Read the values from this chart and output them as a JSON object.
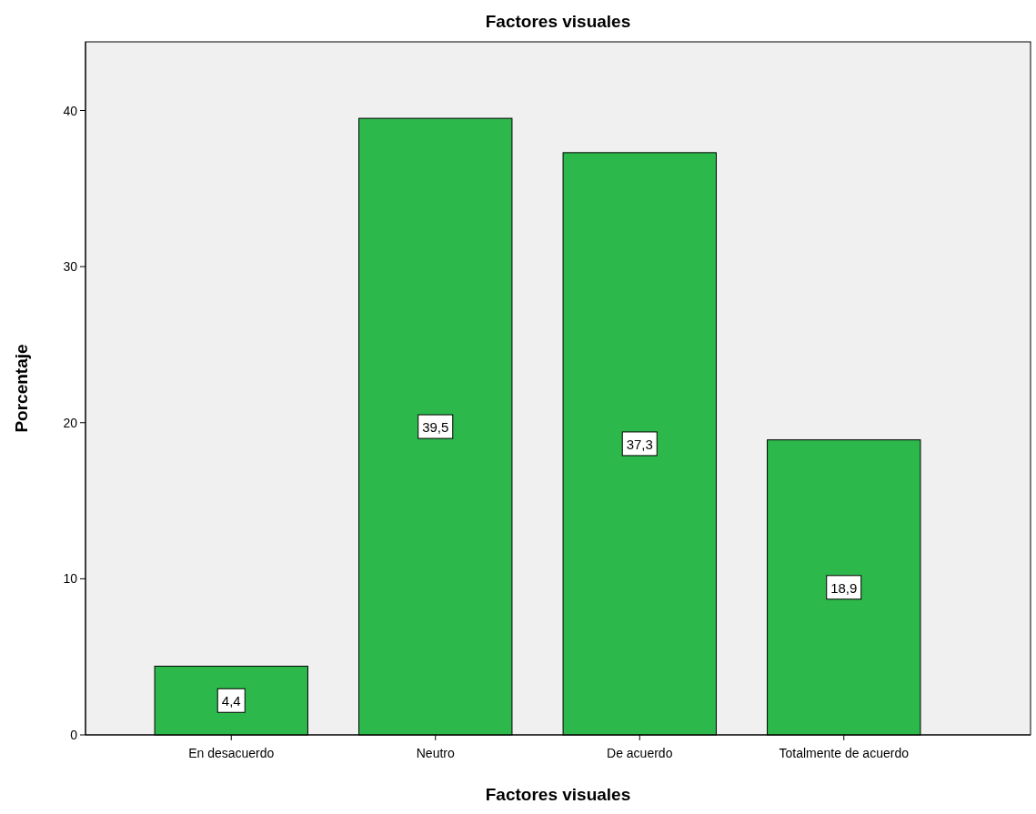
{
  "chart_data": {
    "type": "bar",
    "title": "Factores visuales",
    "xlabel": "Factores visuales",
    "ylabel": "Porcentaje",
    "categories": [
      "En desacuerdo",
      "Neutro",
      "De acuerdo",
      "Totalmente de acuerdo"
    ],
    "values": [
      4.4,
      39.5,
      37.3,
      18.9
    ],
    "value_labels": [
      "4,4",
      "39,5",
      "37,3",
      "18,9"
    ],
    "color": "#2db84b",
    "ylim": [
      0,
      44.4
    ],
    "yticks": [
      0,
      10,
      20,
      30,
      40
    ],
    "grid": false
  }
}
